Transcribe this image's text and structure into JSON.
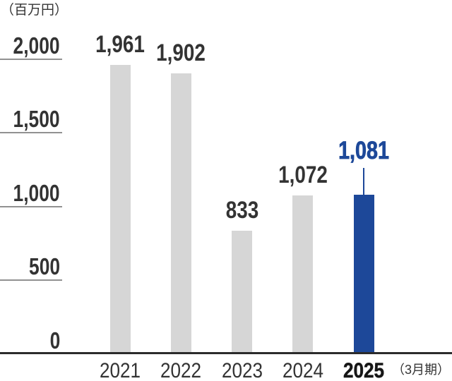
{
  "chart_data": {
    "type": "bar",
    "title": "",
    "unit_label": "（百万円）",
    "x_suffix_label": "（3月期）",
    "categories": [
      "2021",
      "2022",
      "2023",
      "2024",
      "2025"
    ],
    "values": [
      1961,
      1902,
      833,
      1072,
      1081
    ],
    "value_labels": [
      "1,961",
      "1,902",
      "833",
      "1,072",
      "1,081"
    ],
    "highlight_index": 4,
    "ylim": [
      0,
      2000
    ],
    "yticks": [
      0,
      500,
      1000,
      1500,
      2000
    ],
    "ytick_labels": [
      "0",
      "500",
      "1,000",
      "1,500",
      "2,000"
    ],
    "grid": "off",
    "legend": "none",
    "colors": {
      "bar": "#d6d6d6",
      "highlight": "#1d4899",
      "text": "#333333",
      "highlight_text": "#1d4899",
      "tick_line": "#919191",
      "axis_line": "#2b2b2b"
    }
  }
}
